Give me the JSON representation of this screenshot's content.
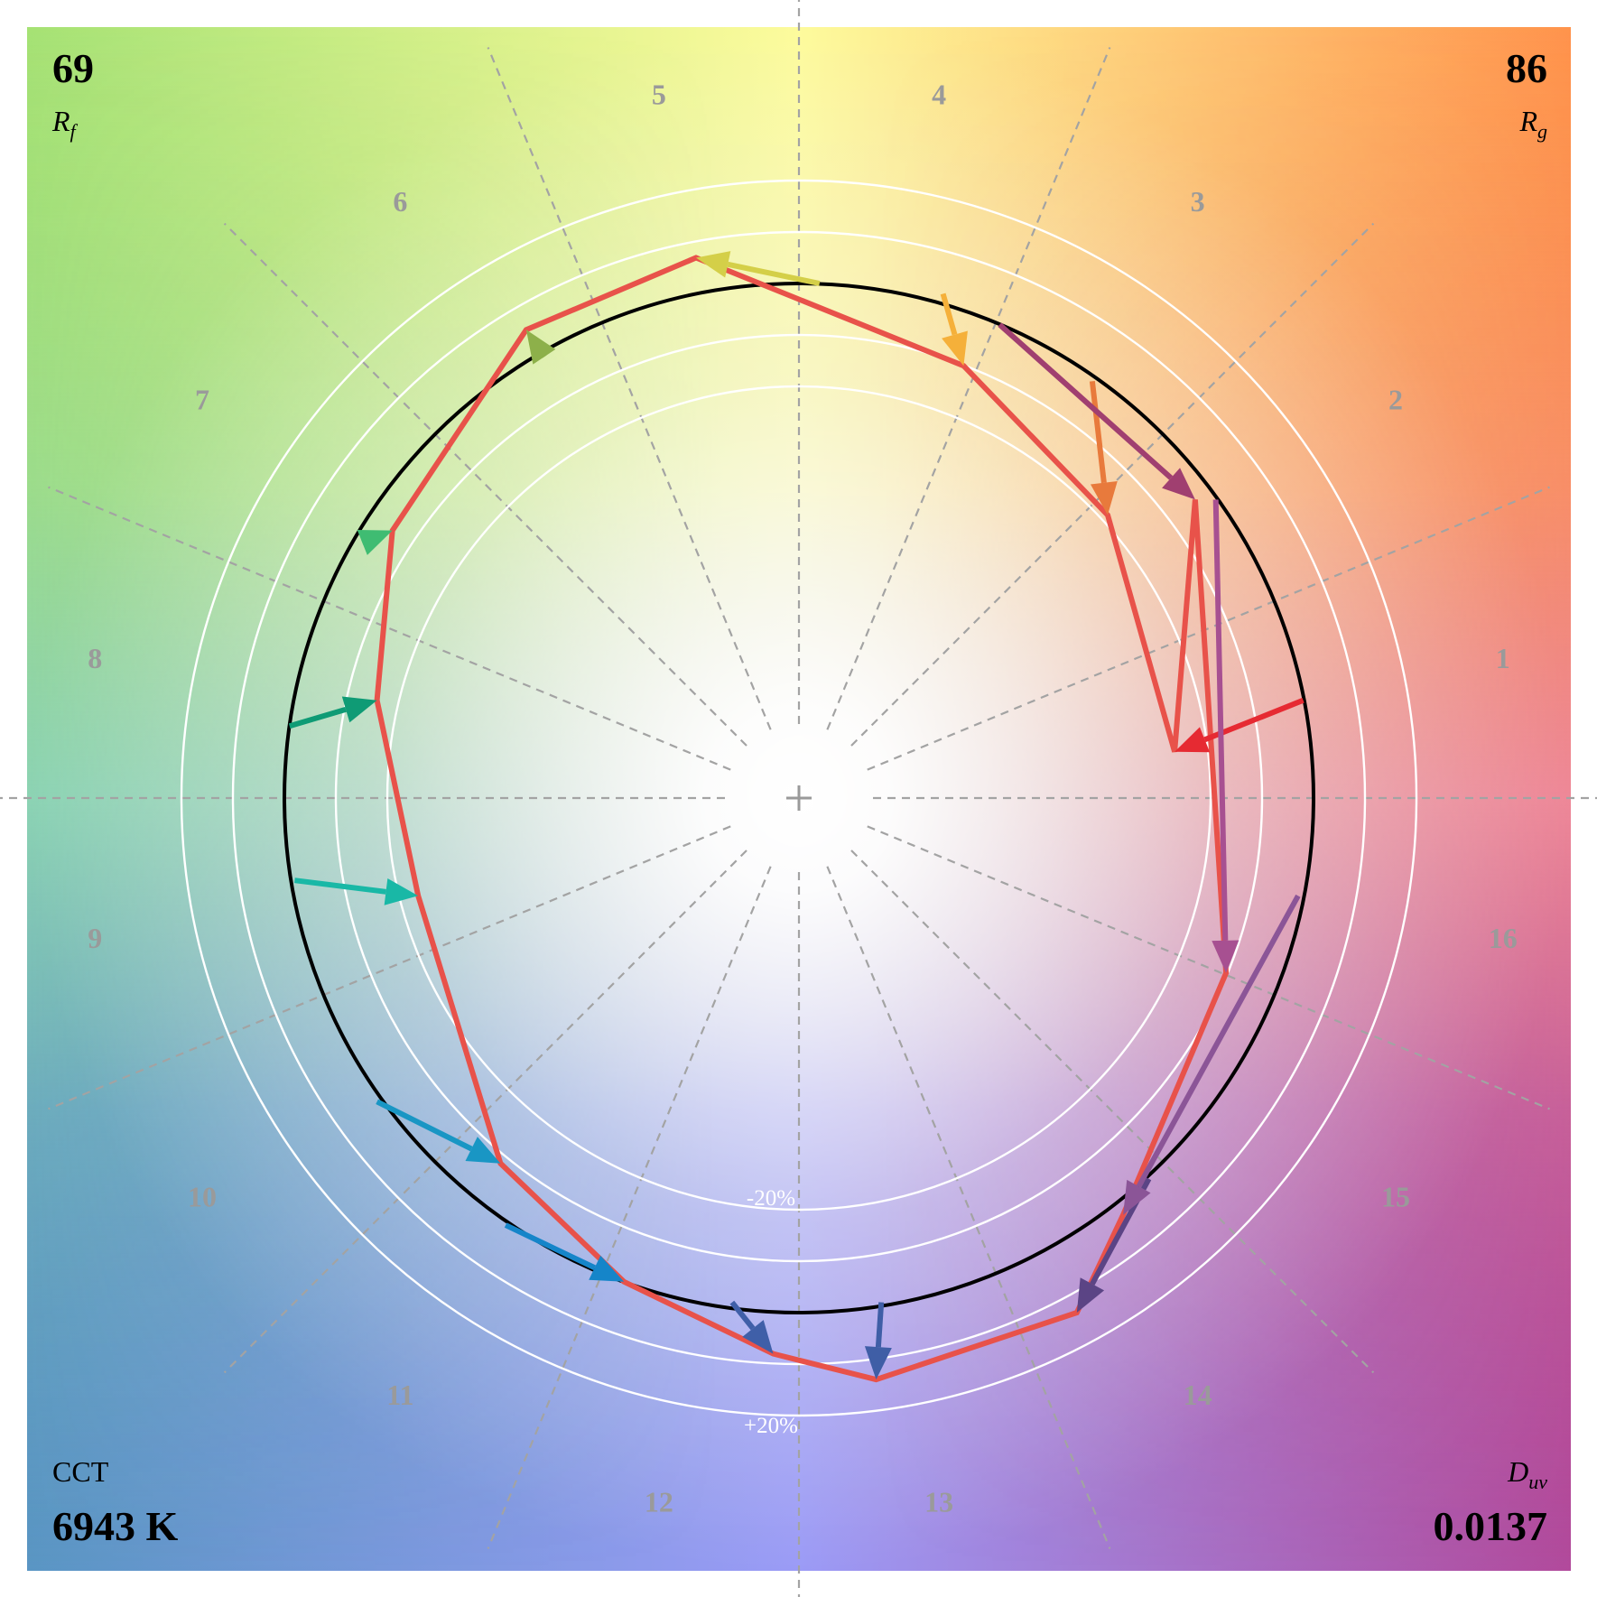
{
  "metrics": {
    "rf_value": "69",
    "rf_label_main": "R",
    "rf_label_sub": "f",
    "rg_value": "86",
    "rg_label_main": "R",
    "rg_label_sub": "g",
    "cct_label": "CCT",
    "cct_value": "6943 K",
    "duv_label_main": "D",
    "duv_label_sub": "uv",
    "duv_value": "0.0137"
  },
  "chart_data": {
    "type": "color-vector-graphic",
    "hue_bins": [
      "1",
      "2",
      "3",
      "4",
      "5",
      "6",
      "7",
      "8",
      "9",
      "10",
      "11",
      "12",
      "13",
      "14",
      "15",
      "16"
    ],
    "ring_labels": [
      "-20%",
      "+20%"
    ],
    "ring_levels": [
      -0.2,
      -0.1,
      0,
      0.1,
      0.2
    ],
    "reference_radius": 1.0,
    "reference_points": [
      [
        0.98,
        0.19
      ],
      [
        0.57,
        0.81
      ],
      [
        0.28,
        0.98
      ],
      [
        0.04,
        1.0
      ],
      [
        -0.51,
        0.88
      ],
      [
        -0.84,
        0.5
      ],
      [
        -0.99,
        0.14
      ],
      [
        -0.98,
        -0.16
      ],
      [
        -0.82,
        -0.59
      ],
      [
        -0.57,
        -0.83
      ],
      [
        -0.13,
        -0.98
      ],
      [
        0.16,
        -0.98
      ],
      [
        0.68,
        -0.74
      ],
      [
        0.97,
        -0.19
      ],
      [
        0.81,
        0.58
      ],
      [
        0.39,
        0.92
      ]
    ],
    "test_points": [
      [
        0.73,
        0.09
      ],
      [
        0.6,
        0.55
      ],
      [
        0.32,
        0.84
      ],
      [
        -0.2,
        1.05
      ],
      [
        -0.53,
        0.91
      ],
      [
        -0.79,
        0.52
      ],
      [
        -0.82,
        0.19
      ],
      [
        -0.74,
        -0.19
      ],
      [
        -0.58,
        -0.71
      ],
      [
        -0.34,
        -0.94
      ],
      [
        -0.05,
        -1.08
      ],
      [
        0.15,
        -1.13
      ],
      [
        0.54,
        -1.0
      ],
      [
        0.63,
        -0.81
      ],
      [
        0.83,
        -0.34
      ],
      [
        0.77,
        0.58
      ]
    ],
    "series_color": "#e8524a",
    "reference_color": "#000000",
    "bin_colors": [
      "#e62a32",
      "#e87a3c",
      "#f5b03a",
      "#d4cf48",
      "#8db04a",
      "#3fbc72",
      "#0f9b75",
      "#19b8a6",
      "#1996c4",
      "#1585c9",
      "#3f5fa8",
      "#3f5ea6",
      "#5b4485",
      "#8b5597",
      "#a75091",
      "#a03f70"
    ]
  }
}
